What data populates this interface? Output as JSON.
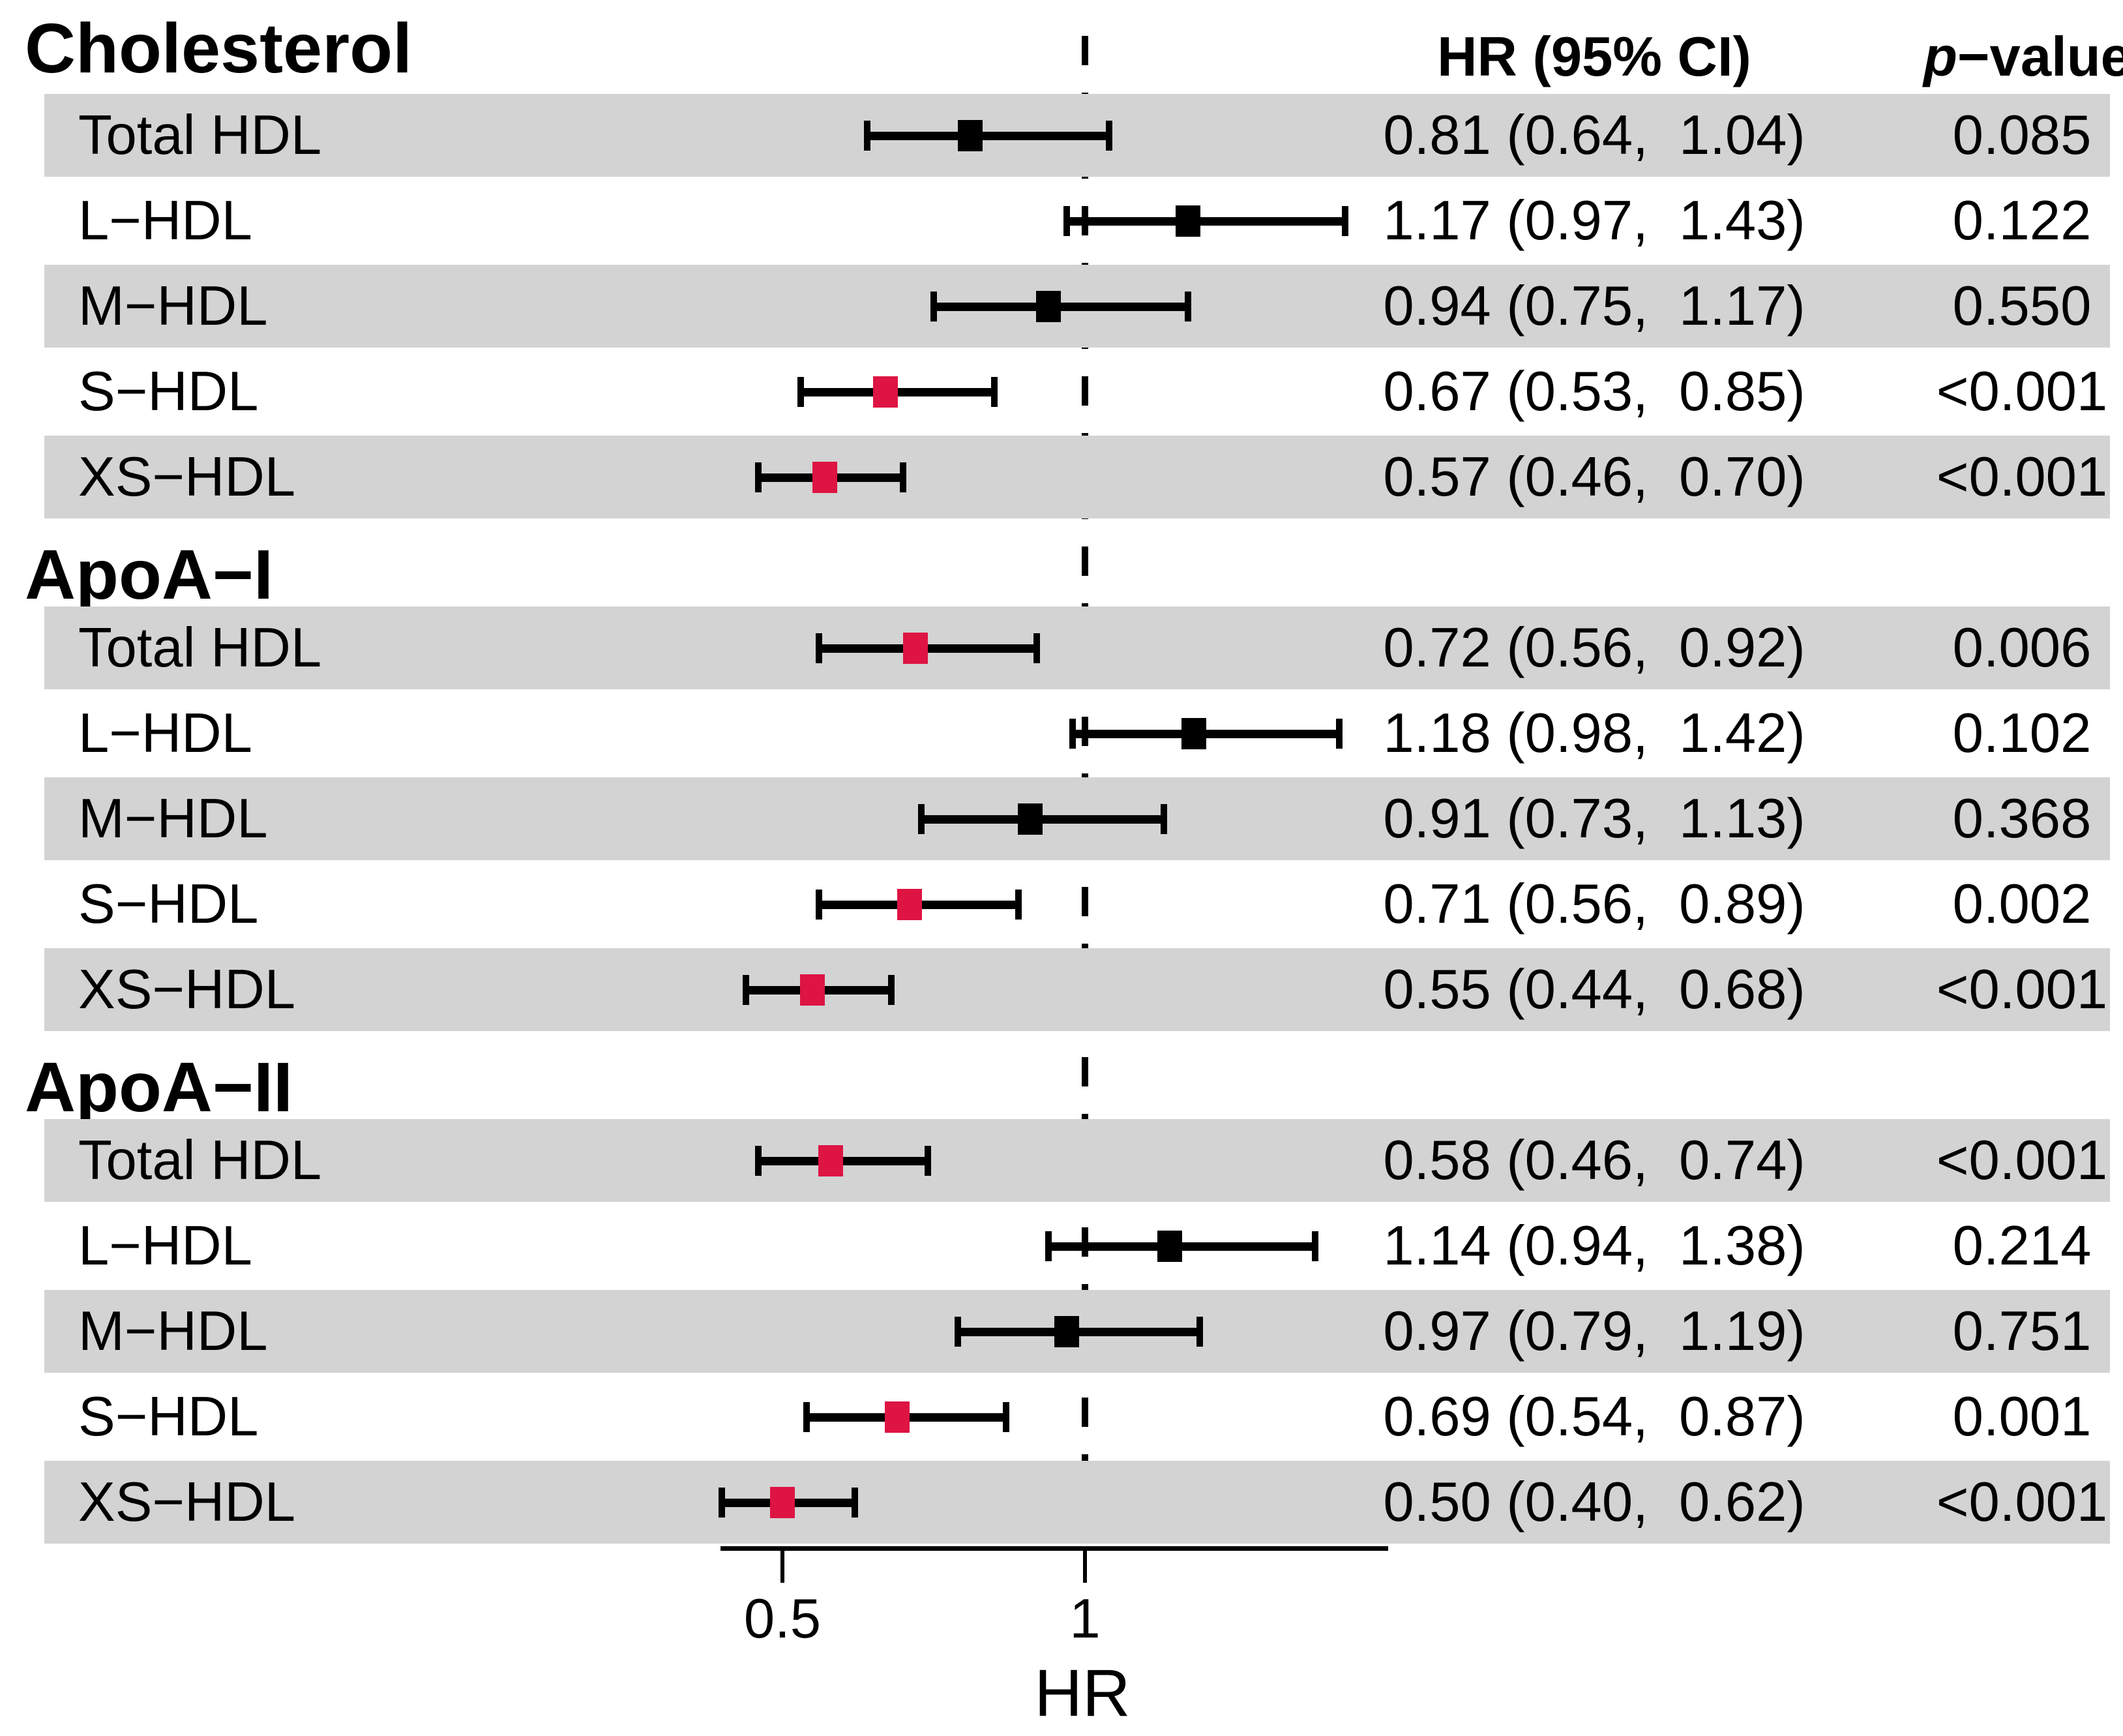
{
  "figure": {
    "columns": {
      "hr_ci_header": "HR (95% CI)",
      "p_header_italic": "p",
      "p_header_rest": "−value"
    },
    "axis": {
      "label": "HR",
      "scale": "linear",
      "min": 0.4,
      "max": 1.5,
      "reference_line": 1.0,
      "ticks": [
        {
          "value": 0.5,
          "label": "0.5"
        },
        {
          "value": 1.0,
          "label": "1"
        }
      ]
    },
    "colors": {
      "significant_marker": "#DE1443",
      "nonsignificant_marker": "#000000",
      "row_band": "#D3D3D3",
      "line": "#000000"
    },
    "groups": [
      {
        "label": "Cholesterol",
        "rows": [
          {
            "label": "Total HDL",
            "hr": 0.81,
            "lo": 0.64,
            "hi": 1.04,
            "hr_ci_text": "0.81 (0.64,  1.04)",
            "p": "0.085",
            "significant": false
          },
          {
            "label": "L−HDL",
            "hr": 1.17,
            "lo": 0.97,
            "hi": 1.43,
            "hr_ci_text": "1.17 (0.97,  1.43)",
            "p": "0.122",
            "significant": false
          },
          {
            "label": "M−HDL",
            "hr": 0.94,
            "lo": 0.75,
            "hi": 1.17,
            "hr_ci_text": "0.94 (0.75,  1.17)",
            "p": "0.550",
            "significant": false
          },
          {
            "label": "S−HDL",
            "hr": 0.67,
            "lo": 0.53,
            "hi": 0.85,
            "hr_ci_text": "0.67 (0.53,  0.85)",
            "p": "<0.001",
            "significant": true
          },
          {
            "label": "XS−HDL",
            "hr": 0.57,
            "lo": 0.46,
            "hi": 0.7,
            "hr_ci_text": "0.57 (0.46,  0.70)",
            "p": "<0.001",
            "significant": true
          }
        ]
      },
      {
        "label": "ApoA−I",
        "rows": [
          {
            "label": "Total HDL",
            "hr": 0.72,
            "lo": 0.56,
            "hi": 0.92,
            "hr_ci_text": "0.72 (0.56,  0.92)",
            "p": "0.006",
            "significant": true
          },
          {
            "label": "L−HDL",
            "hr": 1.18,
            "lo": 0.98,
            "hi": 1.42,
            "hr_ci_text": "1.18 (0.98,  1.42)",
            "p": "0.102",
            "significant": false
          },
          {
            "label": "M−HDL",
            "hr": 0.91,
            "lo": 0.73,
            "hi": 1.13,
            "hr_ci_text": "0.91 (0.73,  1.13)",
            "p": "0.368",
            "significant": false
          },
          {
            "label": "S−HDL",
            "hr": 0.71,
            "lo": 0.56,
            "hi": 0.89,
            "hr_ci_text": "0.71 (0.56,  0.89)",
            "p": "0.002",
            "significant": true
          },
          {
            "label": "XS−HDL",
            "hr": 0.55,
            "lo": 0.44,
            "hi": 0.68,
            "hr_ci_text": "0.55 (0.44,  0.68)",
            "p": "<0.001",
            "significant": true
          }
        ]
      },
      {
        "label": "ApoA−II",
        "rows": [
          {
            "label": "Total HDL",
            "hr": 0.58,
            "lo": 0.46,
            "hi": 0.74,
            "hr_ci_text": "0.58 (0.46,  0.74)",
            "p": "<0.001",
            "significant": true
          },
          {
            "label": "L−HDL",
            "hr": 1.14,
            "lo": 0.94,
            "hi": 1.38,
            "hr_ci_text": "1.14 (0.94,  1.38)",
            "p": "0.214",
            "significant": false
          },
          {
            "label": "M−HDL",
            "hr": 0.97,
            "lo": 0.79,
            "hi": 1.19,
            "hr_ci_text": "0.97 (0.79,  1.19)",
            "p": "0.751",
            "significant": false
          },
          {
            "label": "S−HDL",
            "hr": 0.69,
            "lo": 0.54,
            "hi": 0.87,
            "hr_ci_text": "0.69 (0.54,  0.87)",
            "p": "0.001",
            "significant": true
          },
          {
            "label": "XS−HDL",
            "hr": 0.5,
            "lo": 0.4,
            "hi": 0.62,
            "hr_ci_text": "0.50 (0.40,  0.62)",
            "p": "<0.001",
            "significant": true
          }
        ]
      }
    ]
  },
  "chart_data": {
    "type": "forest",
    "title": "",
    "xlabel": "HR",
    "x_scale": "linear",
    "xlim": [
      0.4,
      1.5
    ],
    "x_ticks": [
      0.5,
      1
    ],
    "reference_line_x": 1.0,
    "columns": [
      "HR (95% CI)",
      "p-value"
    ],
    "groups": [
      {
        "name": "Cholesterol",
        "rows": [
          {
            "label": "Total HDL",
            "hr": 0.81,
            "ci": [
              0.64,
              1.04
            ],
            "p": "0.085",
            "marker_color": "#000000"
          },
          {
            "label": "L-HDL",
            "hr": 1.17,
            "ci": [
              0.97,
              1.43
            ],
            "p": "0.122",
            "marker_color": "#000000"
          },
          {
            "label": "M-HDL",
            "hr": 0.94,
            "ci": [
              0.75,
              1.17
            ],
            "p": "0.550",
            "marker_color": "#000000"
          },
          {
            "label": "S-HDL",
            "hr": 0.67,
            "ci": [
              0.53,
              0.85
            ],
            "p": "<0.001",
            "marker_color": "#DE1443"
          },
          {
            "label": "XS-HDL",
            "hr": 0.57,
            "ci": [
              0.46,
              0.7
            ],
            "p": "<0.001",
            "marker_color": "#DE1443"
          }
        ]
      },
      {
        "name": "ApoA-I",
        "rows": [
          {
            "label": "Total HDL",
            "hr": 0.72,
            "ci": [
              0.56,
              0.92
            ],
            "p": "0.006",
            "marker_color": "#DE1443"
          },
          {
            "label": "L-HDL",
            "hr": 1.18,
            "ci": [
              0.98,
              1.42
            ],
            "p": "0.102",
            "marker_color": "#000000"
          },
          {
            "label": "M-HDL",
            "hr": 0.91,
            "ci": [
              0.73,
              1.13
            ],
            "p": "0.368",
            "marker_color": "#000000"
          },
          {
            "label": "S-HDL",
            "hr": 0.71,
            "ci": [
              0.56,
              0.89
            ],
            "p": "0.002",
            "marker_color": "#DE1443"
          },
          {
            "label": "XS-HDL",
            "hr": 0.55,
            "ci": [
              0.44,
              0.68
            ],
            "p": "<0.001",
            "marker_color": "#DE1443"
          }
        ]
      },
      {
        "name": "ApoA-II",
        "rows": [
          {
            "label": "Total HDL",
            "hr": 0.58,
            "ci": [
              0.46,
              0.74
            ],
            "p": "<0.001",
            "marker_color": "#DE1443"
          },
          {
            "label": "L-HDL",
            "hr": 1.14,
            "ci": [
              0.94,
              1.38
            ],
            "p": "0.214",
            "marker_color": "#000000"
          },
          {
            "label": "M-HDL",
            "hr": 0.97,
            "ci": [
              0.79,
              1.19
            ],
            "p": "0.751",
            "marker_color": "#000000"
          },
          {
            "label": "S-HDL",
            "hr": 0.69,
            "ci": [
              0.54,
              0.87
            ],
            "p": "0.001",
            "marker_color": "#DE1443"
          },
          {
            "label": "XS-HDL",
            "hr": 0.5,
            "ci": [
              0.4,
              0.62
            ],
            "p": "<0.001",
            "marker_color": "#DE1443"
          }
        ]
      }
    ],
    "layout_hints": {
      "grid": false,
      "legend": "none",
      "row_shading": "alternating"
    }
  }
}
